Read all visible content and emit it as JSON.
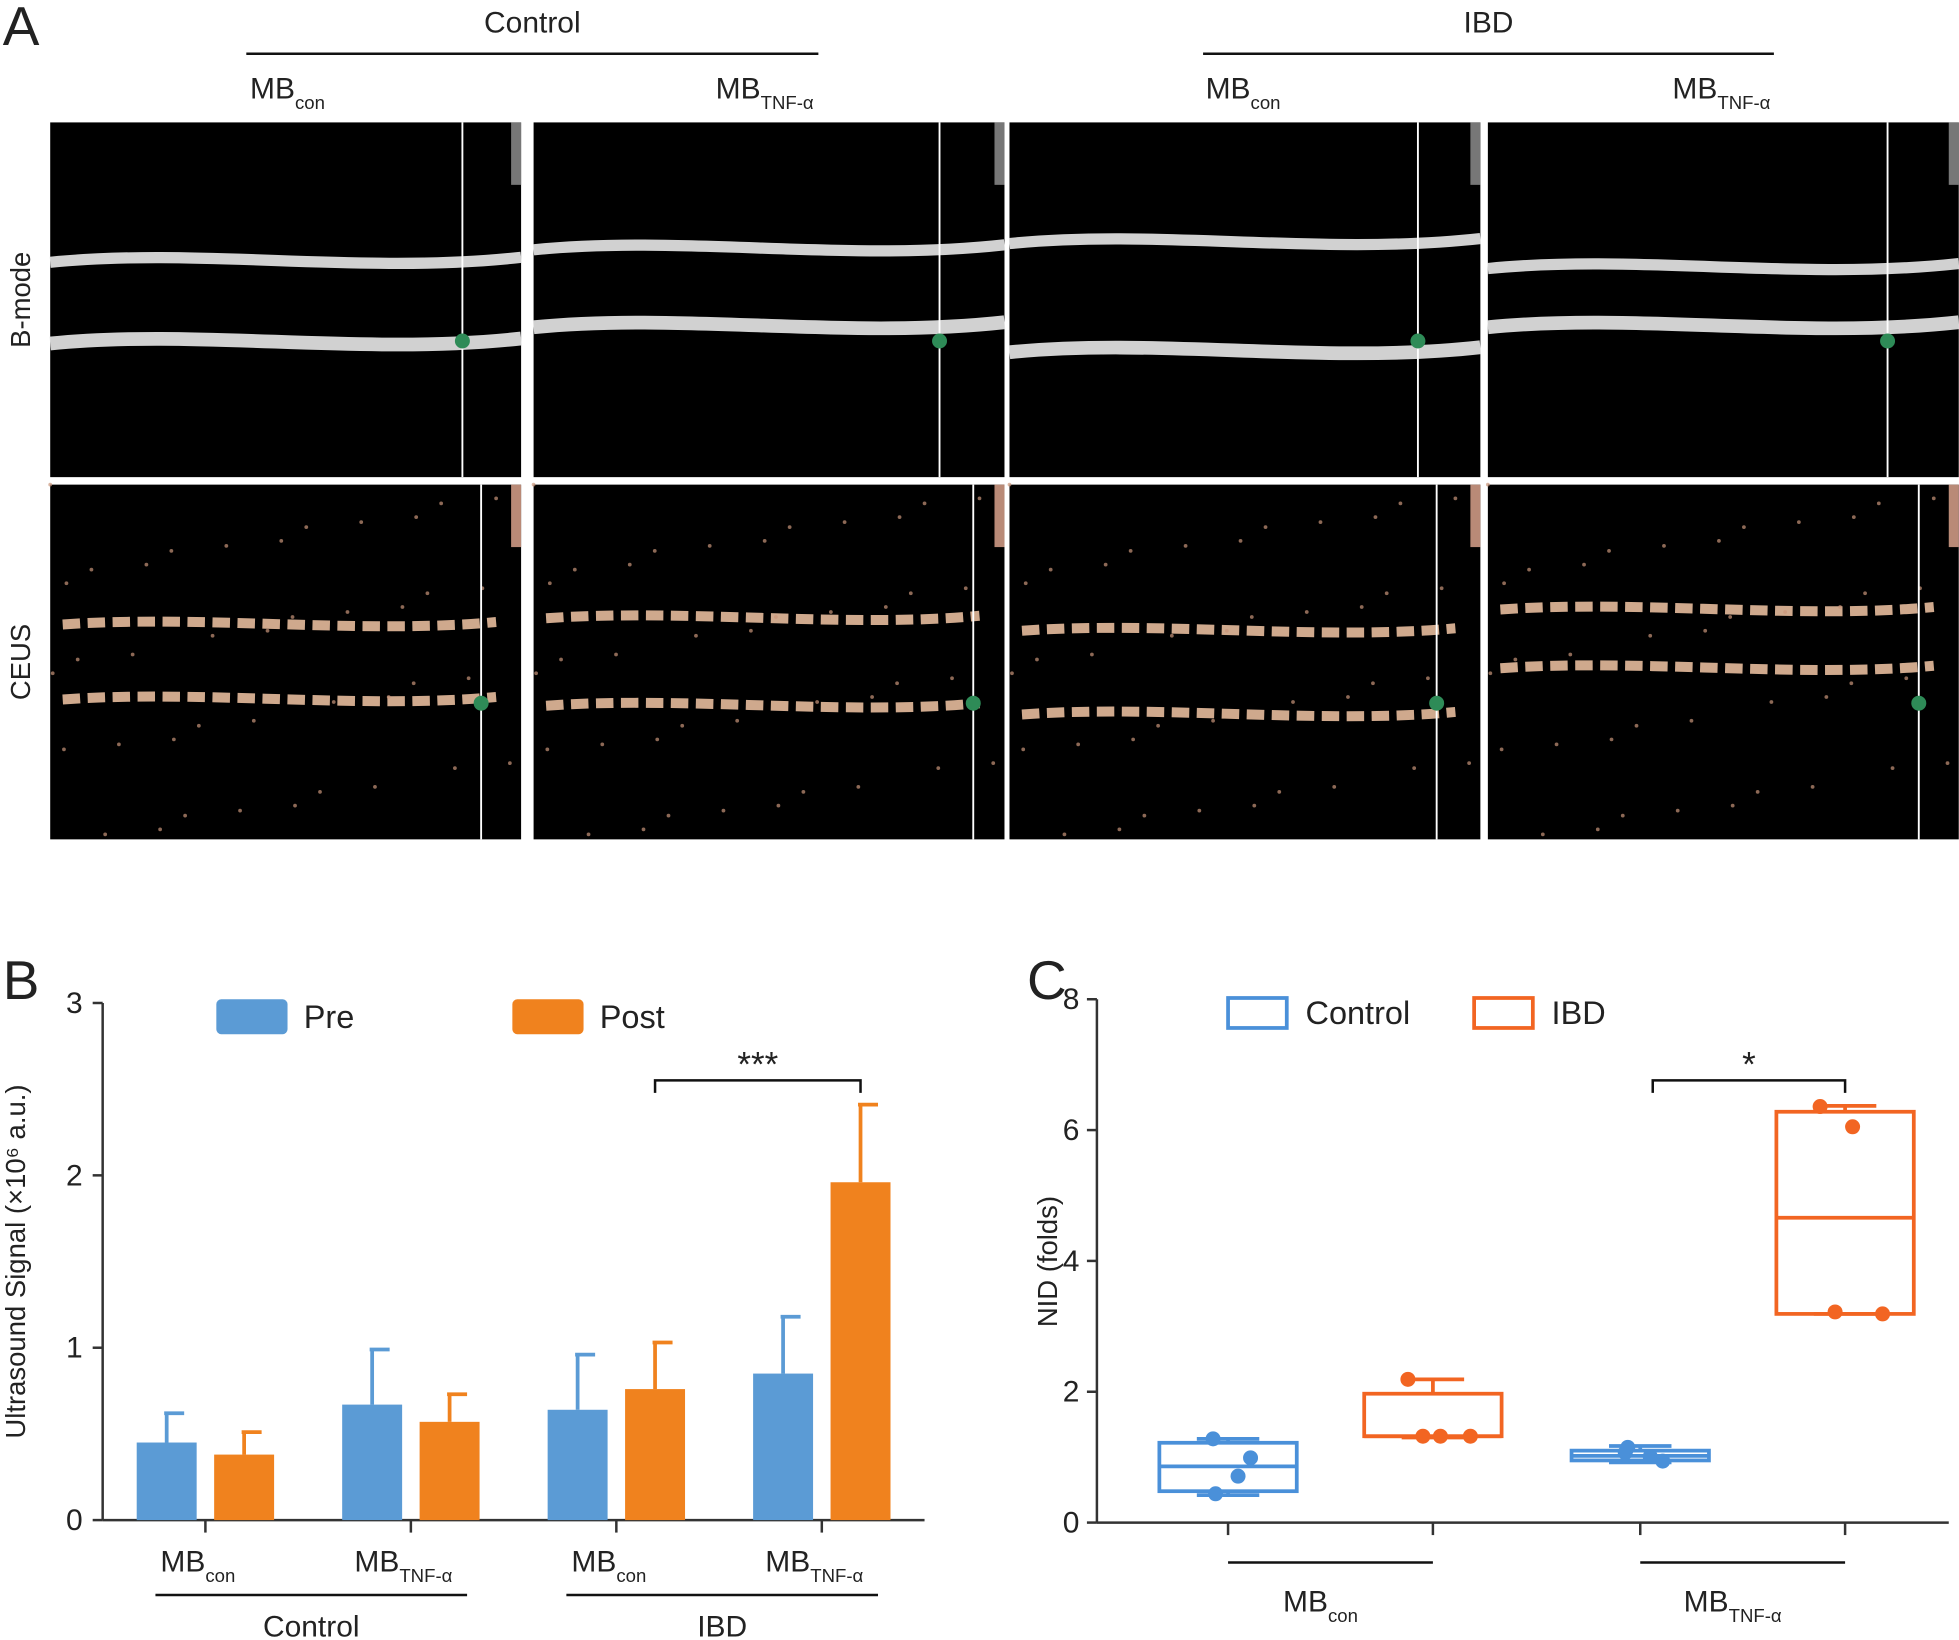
{
  "panel_a": {
    "label": "A",
    "groups": [
      "Control",
      "IBD"
    ],
    "columns": [
      {
        "main": "MB",
        "sub": "con"
      },
      {
        "main": "MB",
        "sub": "TNF-α"
      },
      {
        "main": "MB",
        "sub": "con"
      },
      {
        "main": "MB",
        "sub": "TNF-α"
      }
    ],
    "rows": [
      "B-mode",
      "CEUS"
    ]
  },
  "chart_data": [
    {
      "type": "bar",
      "panel": "B",
      "y_label": "Ultrasound Signal (×10⁶ a.u.)",
      "categories": [
        "MB",
        "MB",
        "MB",
        "MB"
      ],
      "category_subscripts": [
        "con",
        "TNF-α",
        "con",
        "TNF-α"
      ],
      "group_labels": [
        "Control",
        "IBD"
      ],
      "series": [
        {
          "name": "Pre",
          "color": "#5B9BD5",
          "values": [
            0.45,
            0.67,
            0.64,
            0.85
          ],
          "errors": [
            0.17,
            0.32,
            0.32,
            0.33
          ]
        },
        {
          "name": "Post",
          "color": "#F0821E",
          "values": [
            0.38,
            0.57,
            0.76,
            1.96
          ],
          "errors": [
            0.13,
            0.16,
            0.27,
            0.45
          ]
        }
      ],
      "annotation": "***",
      "ylim": [
        0,
        3
      ],
      "yticks": [
        0,
        1,
        2,
        3
      ]
    },
    {
      "type": "box",
      "panel": "C",
      "y_label": "NID (folds)",
      "categories": [
        "MB",
        "MB"
      ],
      "category_subscripts": [
        "con",
        "TNF-α"
      ],
      "series": [
        {
          "name": "Control",
          "color": "#4A90D9",
          "min": [
            0.42,
            0.92
          ],
          "q1": [
            0.48,
            0.95
          ],
          "median": [
            0.86,
            1.02
          ],
          "q3": [
            1.22,
            1.1
          ],
          "max": [
            1.28,
            1.17
          ],
          "points": [
            [
              1.28,
              0.99,
              0.71,
              0.44
            ],
            [
              1.07,
              0.94,
              1.01,
              1.15
            ]
          ]
        },
        {
          "name": "IBD",
          "color": "#F26522",
          "min": [
            1.3,
            3.19
          ],
          "q1": [
            1.32,
            3.19
          ],
          "median": [
            1.32,
            4.66
          ],
          "q3": [
            1.97,
            6.28
          ],
          "max": [
            2.19,
            6.37
          ],
          "points": [
            [
              2.19,
              1.32,
              1.32,
              1.32
            ],
            [
              6.36,
              6.05,
              3.19,
              3.22
            ]
          ]
        }
      ],
      "annotation": "*",
      "ylim": [
        0,
        8
      ],
      "yticks": [
        0,
        2,
        4,
        6,
        8
      ]
    }
  ]
}
